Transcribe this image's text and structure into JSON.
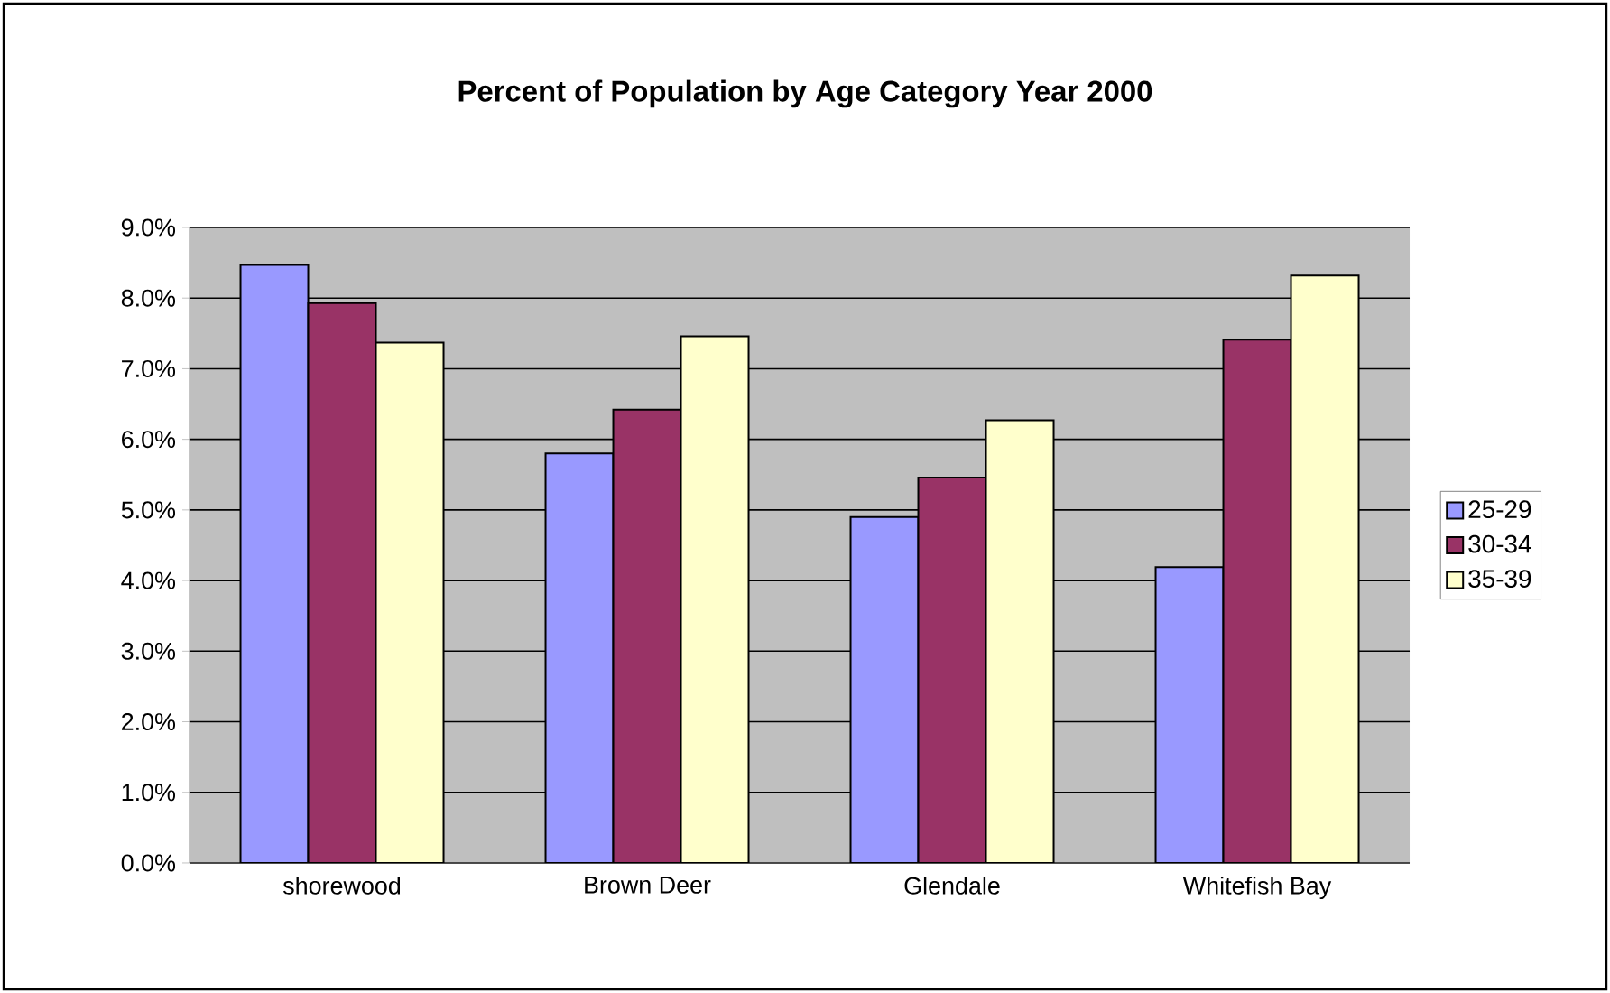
{
  "chart_data": {
    "type": "bar",
    "title": "Percent of Population by Age Category Year 2000",
    "categories": [
      "shorewood",
      "Brown Deer",
      "Glendale",
      "Whitefish Bay"
    ],
    "series": [
      {
        "name": "25-29",
        "color": "#9999ff",
        "values": [
          8.47,
          5.8,
          4.9,
          4.19
        ]
      },
      {
        "name": "30-34",
        "color": "#993366",
        "values": [
          7.93,
          6.42,
          5.46,
          7.41
        ]
      },
      {
        "name": "35-39",
        "color": "#ffffcc",
        "values": [
          7.37,
          7.46,
          6.27,
          8.32
        ]
      }
    ],
    "ylim": [
      0,
      9
    ],
    "yticks": [
      {
        "value": 0,
        "label": "0.0%"
      },
      {
        "value": 1,
        "label": "1.0%"
      },
      {
        "value": 2,
        "label": "2.0%"
      },
      {
        "value": 3,
        "label": "3.0%"
      },
      {
        "value": 4,
        "label": "4.0%"
      },
      {
        "value": 5,
        "label": "5.0%"
      },
      {
        "value": 6,
        "label": "6.0%"
      },
      {
        "value": 7,
        "label": "7.0%"
      },
      {
        "value": 8,
        "label": "8.0%"
      },
      {
        "value": 9,
        "label": "9.0%"
      }
    ],
    "grid": "y",
    "legend": "right"
  }
}
